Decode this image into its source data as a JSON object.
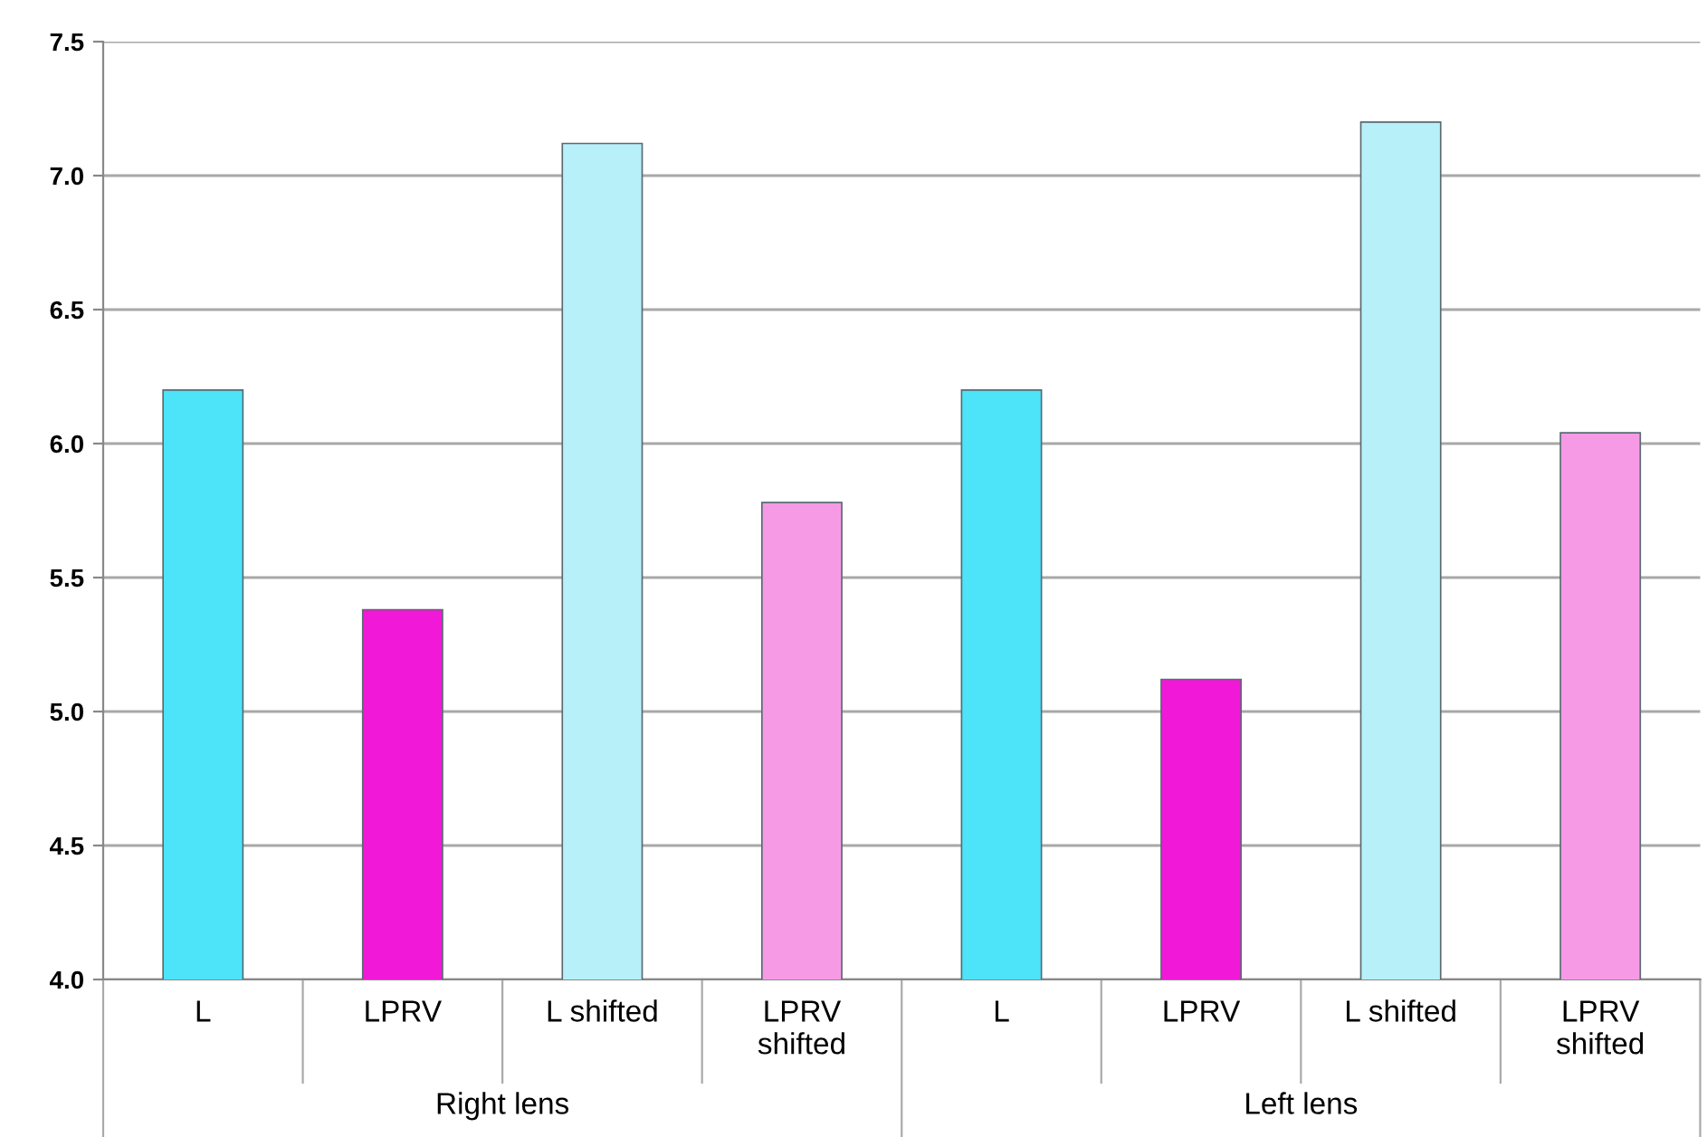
{
  "chart_data": {
    "type": "bar",
    "categories": [
      "L",
      "LPRV",
      "L shifted",
      "LPRV shifted",
      "L",
      "LPRV",
      "L shifted",
      "LPRV shifted"
    ],
    "values": [
      6.2,
      5.38,
      7.12,
      5.78,
      6.2,
      5.12,
      7.2,
      6.04
    ],
    "colors": [
      "#4de4fa",
      "#f218d8",
      "#b8f0fa",
      "#f79ae6",
      "#4de4fa",
      "#f218d8",
      "#b8f0fa",
      "#f79ae6"
    ],
    "ylim": [
      4.0,
      7.5
    ],
    "yticks": [
      {
        "value": 4.0,
        "label": "4.0"
      },
      {
        "value": 4.5,
        "label": "4.5"
      },
      {
        "value": 5.0,
        "label": "5.0"
      },
      {
        "value": 5.5,
        "label": "5.5"
      },
      {
        "value": 6.0,
        "label": "6.0"
      },
      {
        "value": 6.5,
        "label": "6.5"
      },
      {
        "value": 7.0,
        "label": "7.0"
      },
      {
        "value": 7.5,
        "label": "7.5"
      }
    ],
    "grid": "y",
    "annotations": [
      "Right lens",
      "Left lens"
    ]
  }
}
